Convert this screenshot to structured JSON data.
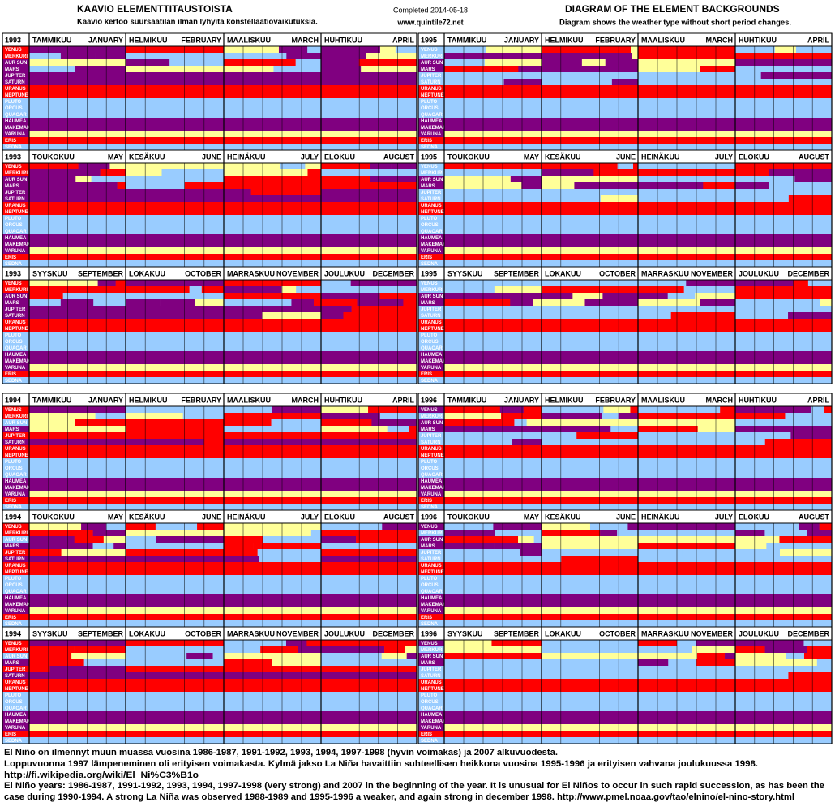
{
  "header": {
    "title_fi": "KAAVIO ELEMENTTITAUSTOISTA",
    "subtitle_fi": "Kaavio kertoo suursäätilan ilman lyhyitä konstellaatiovaikutuksia.",
    "completed": "Completed 2014-05-18",
    "site": "www.quintile72.net",
    "title_en": "DIAGRAM OF THE ELEMENT BACKGROUNDS",
    "subtitle_en": "Diagram shows the weather type without short period changes."
  },
  "planets": [
    "VENUS",
    "MERKURI",
    "AUR SUN",
    "MARS",
    "JUPITER",
    "SATURN",
    "URANUS",
    "NEPTUNE",
    "PLUTO",
    "ORCUS",
    "QUAOAR",
    "HAUMEA",
    "MAKEMAKE",
    "VARUNA",
    "ERIS",
    "SEDNA"
  ],
  "months": [
    {
      "fi": "TAMMIKUU",
      "en": "JANUARY"
    },
    {
      "fi": "HELMIKUU",
      "en": "FEBRUARY"
    },
    {
      "fi": "MAALISKUU",
      "en": "MARCH"
    },
    {
      "fi": "HUHTIKUU",
      "en": "APRIL"
    },
    {
      "fi": "TOUKOKUU",
      "en": "MAY"
    },
    {
      "fi": "KESÄKUU",
      "en": "JUNE"
    },
    {
      "fi": "HEINÄKUU",
      "en": "JULY"
    },
    {
      "fi": "ELOKUU",
      "en": "AUGUST"
    },
    {
      "fi": "SYYSKUU",
      "en": "SEPTEMBER"
    },
    {
      "fi": "LOKAKUU",
      "en": "OCTOBER"
    },
    {
      "fi": "MARRASKUU",
      "en": "NOVEMBER"
    },
    {
      "fi": "JOULUKUU",
      "en": "DECEMBER"
    }
  ],
  "blocks": [
    {
      "years": [
        "1993",
        "1995"
      ]
    },
    {
      "years": [
        "1994",
        "1996"
      ]
    }
  ],
  "footer": [
    "El Niño on ilmennyt muun muassa vuosina 1986-1987, 1991-1992, 1993, 1994, 1997-1998 (hyvin voimakas) ja 2007 alkuvuodesta.",
    "Loppuvuonna 1997 lämpeneminen oli erityisen voimakasta. Kylmä jakso La Niña havaittiin suhteellisen heikkona vuosina 1995-1996 ja erityisen vahvana joulukuussa 1998.",
    "http://fi.wikipedia.org/wiki/El_Ni%C3%B1o",
    "El Niño years: 1986-1987, 1991-1992, 1993, 1994, 1997-1998 (very strong) and 2007 in the beginning of the year.  It is unusual for El Niños to occur in such rapid succession, as has been the",
    "case during 1990-1994.  A strong La Niña was observed 1988-1989 and 1995-1996 a weaker, and again strong in december 1998.  http://www.pmel.noaa.gov/tao/elnino/el-nino-story.html"
  ]
}
